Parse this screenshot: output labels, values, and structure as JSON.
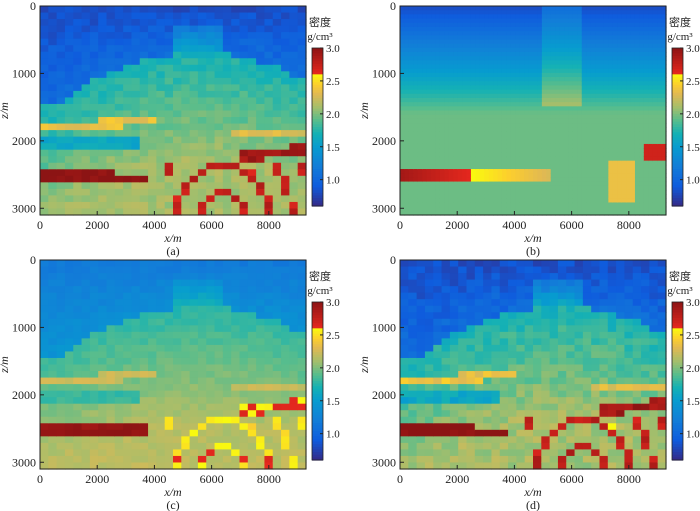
{
  "chart_data": [
    {
      "type": "heatmap",
      "panel_label": "(a)",
      "variant": "a",
      "xlabel": "x/m",
      "ylabel": "z/m",
      "x_ticks": [
        0,
        2000,
        4000,
        6000,
        8000
      ],
      "y_ticks": [
        0,
        1000,
        2000,
        3000
      ],
      "xlim": [
        0,
        9300
      ],
      "ylim": [
        0,
        3100
      ],
      "colorbar": {
        "title": "密度",
        "unit": "g/cm³",
        "ticks": [
          3.0,
          2.5,
          2.0,
          1.5,
          1.0
        ],
        "range": [
          0.6,
          3.0
        ]
      }
    },
    {
      "type": "heatmap",
      "panel_label": "(b)",
      "variant": "b",
      "xlabel": "x/m",
      "ylabel": "z/m",
      "x_ticks": [
        0,
        2000,
        4000,
        6000,
        8000
      ],
      "y_ticks": [
        0,
        1000,
        2000,
        3000
      ],
      "xlim": [
        0,
        9300
      ],
      "ylim": [
        0,
        3100
      ],
      "colorbar": {
        "title": "密度",
        "unit": "g/cm³",
        "ticks": [
          3.0,
          2.5,
          2.0,
          1.5,
          1.0
        ],
        "range": [
          0.6,
          3.0
        ]
      }
    },
    {
      "type": "heatmap",
      "panel_label": "(c)",
      "variant": "c",
      "xlabel": "x/m",
      "ylabel": "z/m",
      "x_ticks": [
        0,
        2000,
        4000,
        6000,
        8000
      ],
      "y_ticks": [
        0,
        1000,
        2000,
        3000
      ],
      "xlim": [
        0,
        9300
      ],
      "ylim": [
        0,
        3100
      ],
      "colorbar": {
        "title": "密度",
        "unit": "g/cm³",
        "ticks": [
          3.0,
          2.5,
          2.0,
          1.5,
          1.0
        ],
        "range": [
          0.6,
          3.0
        ]
      }
    },
    {
      "type": "heatmap",
      "panel_label": "(d)",
      "variant": "d",
      "xlabel": "x/m",
      "ylabel": "z/m",
      "x_ticks": [
        0,
        2000,
        4000,
        6000,
        8000
      ],
      "y_ticks": [
        0,
        1000,
        2000,
        3000
      ],
      "xlim": [
        0,
        9300
      ],
      "ylim": [
        0,
        3100
      ],
      "colorbar": {
        "title": "密度",
        "unit": "g/cm³",
        "ticks": [
          3.0,
          2.5,
          2.0,
          1.5,
          1.0
        ],
        "range": [
          0.6,
          3.0
        ]
      }
    }
  ]
}
